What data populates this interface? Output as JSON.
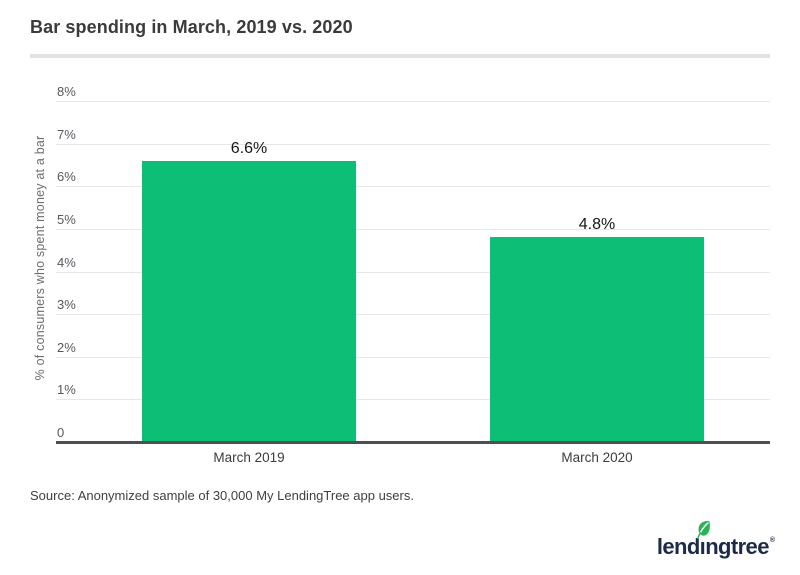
{
  "header": {
    "title": "Bar spending in March, 2019 vs. 2020"
  },
  "chart_data": {
    "type": "bar",
    "title": "Bar spending in March, 2019 vs. 2020",
    "categories": [
      "March 2019",
      "March 2020"
    ],
    "values": [
      6.6,
      4.8
    ],
    "value_labels": [
      "6.6%",
      "4.8%"
    ],
    "xlabel": "",
    "ylabel": "% of consumers who spent money at a bar",
    "ylim": [
      0,
      8
    ],
    "ytick_values": [
      0,
      1,
      2,
      3,
      4,
      5,
      6,
      7,
      8
    ],
    "ytick_labels": [
      "0",
      "1%",
      "2%",
      "3%",
      "4%",
      "5%",
      "6%",
      "7%",
      "8%"
    ],
    "grid": "horizontal",
    "legend": "none",
    "bar_color": "#0cbe76"
  },
  "footer": {
    "source": "Source: Anonymized sample of 30,000 My LendingTree app users.",
    "logo": {
      "full_name": "lendingtree",
      "text_before_leaf": "lend",
      "dotless_i": "ı",
      "text_after_leaf": "ngtree",
      "registered_mark": "®"
    }
  },
  "colors": {
    "bar_green": "#0cbe76",
    "leaf_green": "#2db157",
    "logo_navy": "#1d2b49",
    "gridline": "#e7e7e7",
    "axis_line": "#4f4f4f",
    "tick_label": "#55595f",
    "title_text": "#3b3b3b",
    "divider": "#e2e2e2"
  }
}
